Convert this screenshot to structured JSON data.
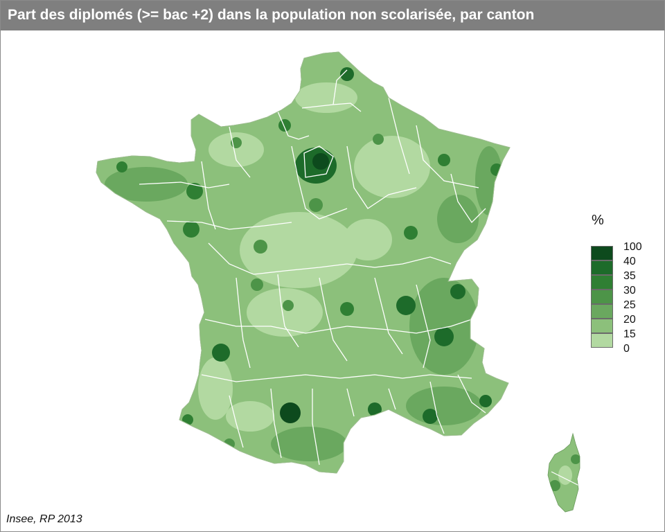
{
  "title": "Part des diplomés (>= bac +2) dans la population non scolarisée, par canton",
  "source": "Insee, RP 2013",
  "legend": {
    "title": "%",
    "breaks": [
      "100",
      "40",
      "35",
      "30",
      "25",
      "20",
      "15",
      "0"
    ],
    "colors": [
      "#0d4a1d",
      "#1d6b2a",
      "#2f7f33",
      "#4d9448",
      "#6aa85f",
      "#8cc07b",
      "#b2d9a1"
    ]
  },
  "regions": [
    {
      "id": "france-mainland",
      "name": "France"
    },
    {
      "id": "corsica",
      "name": "Corse"
    }
  ],
  "colors": {
    "frame": "#8a8a8a",
    "title_bar": "#7f7f7f",
    "department_border": "#ffffff",
    "base_fill": "#8cc07b"
  }
}
